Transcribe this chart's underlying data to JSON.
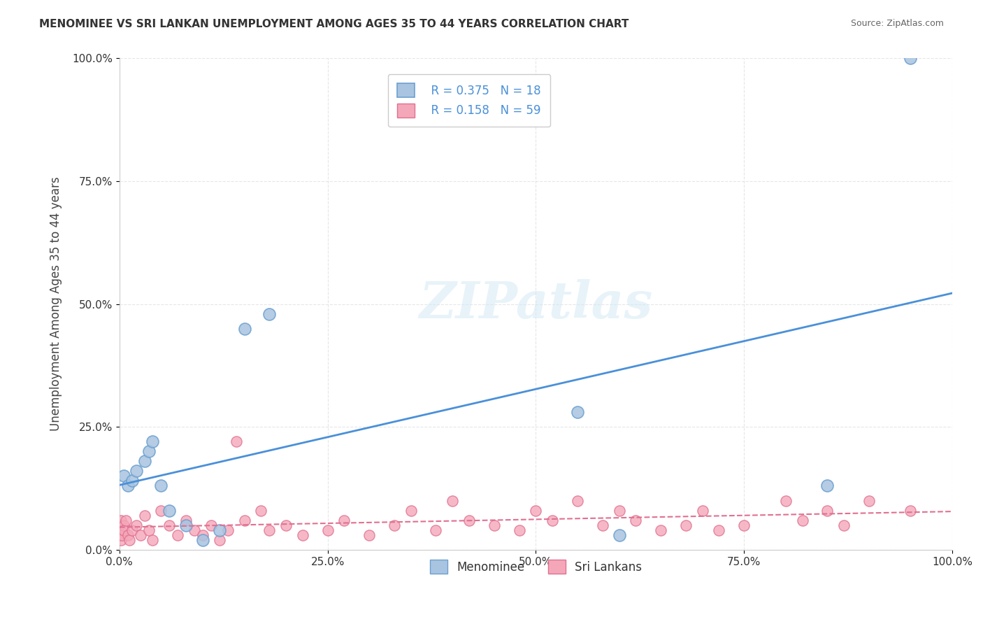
{
  "title": "MENOMINEE VS SRI LANKAN UNEMPLOYMENT AMONG AGES 35 TO 44 YEARS CORRELATION CHART",
  "source": "Source: ZipAtlas.com",
  "ylabel": "Unemployment Among Ages 35 to 44 years",
  "xlabel": "",
  "xlim": [
    0,
    100
  ],
  "ylim": [
    0,
    100
  ],
  "xticks": [
    0,
    25,
    50,
    75,
    100
  ],
  "xticklabels": [
    "0.0%",
    "25.0%",
    "50.0%",
    "75.0%",
    "100.0%"
  ],
  "yticks": [
    0,
    25,
    50,
    75,
    100
  ],
  "yticklabels": [
    "0.0%",
    "25.0%",
    "50.0%",
    "75.0%",
    "100.0%"
  ],
  "menominee_color": "#a8c4e0",
  "srilanka_color": "#f4a7b9",
  "menominee_edge": "#6ca0d0",
  "srilanka_edge": "#e07090",
  "trend_menominee_color": "#4a90d9",
  "trend_srilanka_color": "#e07090",
  "legend_R_N_color": "#4a90d9",
  "menominee_R": "0.375",
  "menominee_N": "18",
  "srilanka_R": "0.158",
  "srilanka_N": "59",
  "menominee_x": [
    0.5,
    1.0,
    1.5,
    2.0,
    3.0,
    3.5,
    4.0,
    5.0,
    6.0,
    8.0,
    10.0,
    12.0,
    15.0,
    18.0,
    55.0,
    60.0,
    85.0,
    95.0
  ],
  "menominee_y": [
    15.0,
    13.0,
    14.0,
    16.0,
    18.0,
    20.0,
    22.0,
    13.0,
    8.0,
    5.0,
    2.0,
    4.0,
    45.0,
    48.0,
    28.0,
    3.0,
    13.0,
    100.0
  ],
  "srilanka_x": [
    0.0,
    0.0,
    0.1,
    0.2,
    0.2,
    0.3,
    0.5,
    0.5,
    0.8,
    1.0,
    1.2,
    1.5,
    2.0,
    2.5,
    3.0,
    3.5,
    4.0,
    5.0,
    6.0,
    7.0,
    8.0,
    9.0,
    10.0,
    11.0,
    12.0,
    13.0,
    14.0,
    15.0,
    17.0,
    18.0,
    20.0,
    22.0,
    25.0,
    27.0,
    30.0,
    33.0,
    35.0,
    38.0,
    40.0,
    42.0,
    45.0,
    48.0,
    50.0,
    52.0,
    55.0,
    58.0,
    60.0,
    62.0,
    65.0,
    68.0,
    70.0,
    72.0,
    75.0,
    80.0,
    82.0,
    85.0,
    87.0,
    90.0,
    95.0
  ],
  "srilanka_y": [
    5.0,
    3.0,
    4.0,
    6.0,
    2.0,
    3.0,
    5.0,
    4.0,
    6.0,
    3.0,
    2.0,
    4.0,
    5.0,
    3.0,
    7.0,
    4.0,
    2.0,
    8.0,
    5.0,
    3.0,
    6.0,
    4.0,
    3.0,
    5.0,
    2.0,
    4.0,
    22.0,
    6.0,
    8.0,
    4.0,
    5.0,
    3.0,
    4.0,
    6.0,
    3.0,
    5.0,
    8.0,
    4.0,
    10.0,
    6.0,
    5.0,
    4.0,
    8.0,
    6.0,
    10.0,
    5.0,
    8.0,
    6.0,
    4.0,
    5.0,
    8.0,
    4.0,
    5.0,
    10.0,
    6.0,
    8.0,
    5.0,
    10.0,
    8.0
  ],
  "watermark": "ZIPatlas",
  "background_color": "#ffffff",
  "grid_color": "#e0e0e0"
}
